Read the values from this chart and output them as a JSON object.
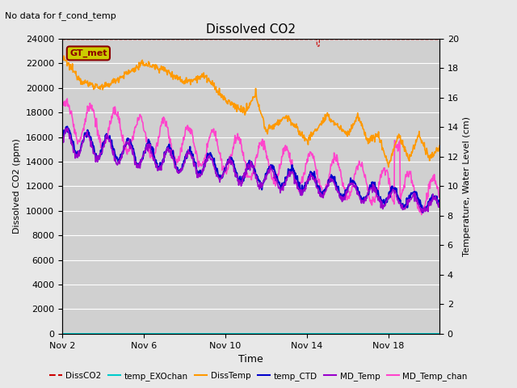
{
  "title": "Dissolved CO2",
  "top_note": "No data for f_cond_temp",
  "xlabel": "Time",
  "ylabel_left": "Dissolved CO2 (ppm)",
  "ylabel_right": "Temperature, Water Level (cm)",
  "ylim_left": [
    0,
    24000
  ],
  "ylim_right": [
    0,
    20
  ],
  "xtick_labels": [
    "Nov 2",
    "Nov 6",
    "Nov 10",
    "Nov 14",
    "Nov 18"
  ],
  "xtick_positions": [
    0,
    4,
    8,
    12,
    16
  ],
  "xlim": [
    0,
    18.5
  ],
  "bg_color": "#e8e8e8",
  "plot_bg_color": "#d0d0d0",
  "gt_met_box_color": "#cccc00",
  "gt_met_text_color": "#8b0000",
  "colors": {
    "dissCO2": "#cc0000",
    "temp_EXO": "#00cccc",
    "dissTemp": "#ff9900",
    "temp_CTD": "#0000cc",
    "MD_Temp": "#9900cc",
    "MD_Temp_chan": "#ff44cc"
  }
}
